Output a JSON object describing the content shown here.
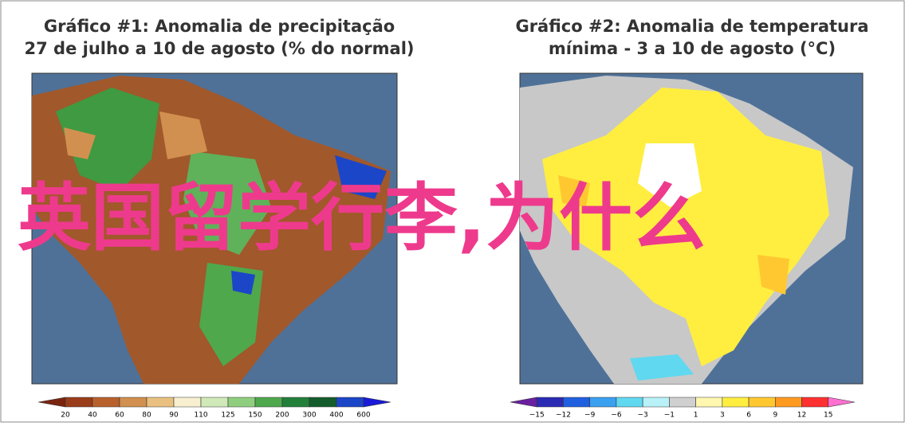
{
  "panels": [
    {
      "title_lines": [
        "Gráfico #1: Anomalia de precipitação",
        "27 de julho a 10 de agosto (% do normal)"
      ],
      "legend": {
        "labels": [
          "20",
          "40",
          "60",
          "80",
          "90",
          "110",
          "125",
          "150",
          "200",
          "300",
          "400",
          "600"
        ],
        "colors": [
          "#7a2410",
          "#9a3d1a",
          "#b8612c",
          "#d1904f",
          "#e9c080",
          "#f7efd0",
          "#cfeab8",
          "#8fce7e",
          "#4fa84c",
          "#23803a",
          "#145c2c",
          "#1c46c8",
          "#1a1ad8"
        ]
      }
    },
    {
      "title_lines": [
        "Gráfico #2: Anomalia de temperatura",
        "mínima - 3 a 10 de agosto (°C)"
      ],
      "legend": {
        "labels": [
          "−15",
          "−12",
          "−9",
          "−6",
          "−3",
          "−1",
          "1",
          "3",
          "6",
          "9",
          "12",
          "15"
        ],
        "colors": [
          "#6a1fa0",
          "#2a2ab5",
          "#2060e0",
          "#3aa0f0",
          "#60d8f0",
          "#b8f2f8",
          "#d0d0d0",
          "#fff7b0",
          "#ffee40",
          "#ffc830",
          "#ff9a20",
          "#ff3030",
          "#ff70d0"
        ]
      }
    }
  ],
  "overlay_text": "英国留学行李,为什么"
}
